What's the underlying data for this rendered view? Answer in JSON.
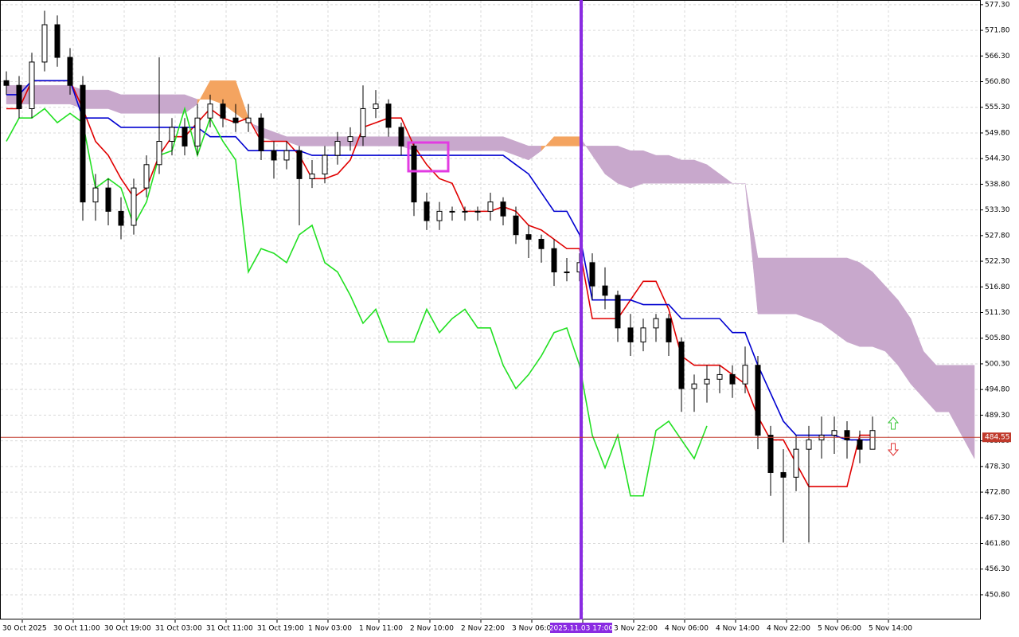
{
  "chart_data": {
    "type": "candlestick",
    "x_labels": [
      "30 Oct 2025",
      "30 Oct 11:00",
      "30 Oct 19:00",
      "31 Oct 03:00",
      "31 Oct 11:00",
      "31 Oct 19:00",
      "1 Nov 03:00",
      "1 Nov 11:00",
      "2 Nov 10:00",
      "2 Nov 22:00",
      "3 Nov 06:00",
      null,
      "3 Nov 22:00",
      "4 Nov 06:00",
      "4 Nov 14:00",
      "4 Nov 22:00",
      "5 Nov 06:00",
      "5 Nov 14:00"
    ],
    "cursor_label": "2025.11.03 17:00",
    "ylim": [
      445.5,
      578.3
    ],
    "yticks": [
      {
        "value": 577.3,
        "label": "577.30"
      },
      {
        "value": 571.8,
        "label": "571.80"
      },
      {
        "value": 566.3,
        "label": "566.30"
      },
      {
        "value": 560.8,
        "label": "560.80"
      },
      {
        "value": 555.3,
        "label": "555.30"
      },
      {
        "value": 549.8,
        "label": "549.80"
      },
      {
        "value": 544.3,
        "label": "544.30"
      },
      {
        "value": 538.8,
        "label": "538.80"
      },
      {
        "value": 533.3,
        "label": "533.30"
      },
      {
        "value": 527.8,
        "label": "527.80"
      },
      {
        "value": 522.3,
        "label": "522.30"
      },
      {
        "value": 516.8,
        "label": "516.80"
      },
      {
        "value": 511.3,
        "label": "511.30"
      },
      {
        "value": 505.8,
        "label": "505.80"
      },
      {
        "value": 500.3,
        "label": "500.30"
      },
      {
        "value": 494.8,
        "label": "494.80"
      },
      {
        "value": 489.3,
        "label": "489.30"
      },
      {
        "value": 483.8,
        "label": "483.80"
      },
      {
        "value": 478.3,
        "label": "478.30"
      },
      {
        "value": 472.8,
        "label": "472.80"
      },
      {
        "value": 467.3,
        "label": "467.30"
      },
      {
        "value": 461.8,
        "label": "461.80"
      },
      {
        "value": 456.3,
        "label": "456.30"
      },
      {
        "value": 450.8,
        "label": "450.80"
      }
    ],
    "grid": true,
    "current_price": 484.55,
    "current_price_color": "#c0392b",
    "candles": {
      "up_color": "#ffffff",
      "down_color": "#000000",
      "open": [
        561,
        560,
        555,
        565,
        573,
        566,
        560,
        535,
        538,
        533,
        530,
        538,
        543,
        548,
        551,
        547,
        553,
        556,
        553,
        552,
        553,
        546,
        544,
        546,
        540,
        541,
        545,
        548,
        549,
        555,
        556,
        551,
        547,
        535,
        531,
        533,
        533,
        533,
        533,
        535,
        532,
        528,
        527,
        525,
        520,
        520,
        522,
        517,
        515,
        508,
        505,
        508,
        510,
        505,
        495,
        496,
        497,
        498,
        496,
        500,
        485,
        477,
        476,
        482,
        484,
        485,
        486,
        484,
        482
      ],
      "high": [
        563,
        562,
        567,
        576,
        575,
        568,
        562,
        541,
        540,
        536,
        540,
        545,
        566,
        553,
        553,
        556,
        558,
        557,
        556,
        556,
        554,
        548,
        548,
        547,
        544,
        547,
        550,
        551,
        560,
        559,
        557,
        552,
        548,
        537,
        535,
        534,
        534,
        534,
        537,
        536,
        534,
        530,
        528,
        527,
        523,
        524,
        524,
        521,
        516,
        511,
        510,
        511,
        511,
        506,
        498,
        500,
        500,
        500,
        504,
        502,
        487,
        482,
        485,
        487,
        489,
        489,
        488,
        486,
        489
      ],
      "low": [
        558,
        553,
        553,
        563,
        564,
        558,
        531,
        531,
        530,
        527,
        528,
        536,
        541,
        545,
        545,
        545,
        551,
        551,
        550,
        550,
        544,
        540,
        542,
        530,
        538,
        539,
        543,
        546,
        547,
        553,
        549,
        545,
        532,
        529,
        529,
        531,
        531,
        531,
        531,
        530,
        526,
        523,
        522,
        517,
        518,
        518,
        514,
        512,
        505,
        502,
        503,
        505,
        502,
        490,
        490,
        492,
        494,
        493,
        494,
        482,
        472,
        462,
        473,
        462,
        480,
        481,
        480,
        479,
        483
      ],
      "close": [
        560,
        555,
        565,
        573,
        566,
        560,
        535,
        538,
        533,
        530,
        538,
        543,
        548,
        551,
        547,
        553,
        556,
        553,
        552,
        553,
        546,
        544,
        546,
        540,
        541,
        545,
        548,
        549,
        555,
        556,
        551,
        547,
        535,
        531,
        533,
        533,
        533,
        533,
        535,
        532,
        528,
        527,
        525,
        520,
        520,
        522,
        517,
        515,
        508,
        505,
        508,
        510,
        505,
        495,
        496,
        497,
        498,
        496,
        500,
        485,
        477,
        476,
        482,
        484,
        485,
        486,
        484,
        482,
        486
      ]
    },
    "cloud": {
      "up_color": "#f4a460",
      "down_color": "#c8a8cc",
      "span_a": [
        556,
        556,
        556,
        556,
        556,
        556,
        555,
        555,
        555,
        554,
        554,
        554,
        554,
        554,
        554,
        556,
        561,
        561,
        561,
        553,
        549,
        548,
        548,
        547,
        547,
        547,
        547,
        547,
        547,
        547,
        547,
        547,
        546,
        546,
        546,
        546,
        546,
        546,
        546,
        546,
        545,
        544,
        546,
        549,
        549,
        549,
        545,
        541,
        539,
        538,
        539,
        539,
        539,
        539,
        539,
        539,
        539,
        539,
        539,
        511,
        511,
        511,
        511,
        510,
        509,
        507,
        505,
        504,
        504,
        503,
        500,
        496,
        493,
        490,
        490,
        485,
        480
      ],
      "span_b": [
        560,
        560,
        560,
        560,
        560,
        560,
        559,
        559,
        559,
        558,
        558,
        558,
        558,
        558,
        558,
        557,
        557,
        556,
        554,
        552,
        551,
        550,
        549,
        549,
        549,
        549,
        549,
        549,
        549,
        549,
        549,
        549,
        549,
        549,
        549,
        549,
        549,
        549,
        549,
        549,
        548,
        547,
        547,
        547,
        547,
        547,
        547,
        547,
        547,
        546,
        546,
        545,
        545,
        544,
        544,
        543,
        541,
        539,
        539,
        523,
        523,
        523,
        523,
        523,
        523,
        523,
        523,
        522,
        520,
        517,
        514,
        510,
        503,
        500,
        500,
        500,
        500
      ]
    },
    "lines": [
      {
        "color": "#e00000",
        "values": [
          555,
          555,
          561,
          561,
          561,
          561,
          555,
          548,
          545,
          540,
          536,
          538,
          545,
          549,
          549,
          552,
          555,
          553,
          552,
          553,
          548,
          548,
          548,
          545,
          540,
          540,
          541,
          544,
          551,
          552,
          553,
          553,
          547,
          543,
          540,
          539,
          533,
          533,
          533,
          534,
          533,
          530,
          529,
          527,
          525,
          525,
          510,
          510,
          510,
          514,
          518,
          518,
          512,
          502,
          500,
          500,
          500,
          498,
          496,
          489,
          484,
          484,
          479,
          474,
          474,
          474,
          474,
          485,
          485,
          null,
          null,
          null,
          null,
          null,
          null,
          null,
          null
        ]
      },
      {
        "color": "#0000d0",
        "values": [
          558,
          558,
          561,
          561,
          561,
          561,
          553,
          553,
          553,
          551,
          551,
          551,
          551,
          551,
          551,
          551,
          549,
          549,
          549,
          546,
          546,
          546,
          546,
          546,
          545,
          545,
          545,
          545,
          545,
          545,
          545,
          545,
          545,
          545,
          545,
          545,
          545,
          545,
          545,
          545,
          543,
          541,
          537,
          533,
          533,
          528,
          514,
          514,
          514,
          514,
          513,
          513,
          513,
          510,
          510,
          510,
          510,
          507,
          507,
          500,
          494,
          488,
          485,
          485,
          485,
          485,
          484,
          484,
          484,
          null,
          null,
          null,
          null,
          null,
          null,
          null,
          null
        ]
      },
      {
        "color": "#22e022",
        "values": [
          548,
          553,
          553,
          555,
          552,
          554,
          552,
          538,
          540,
          538,
          530,
          535,
          545,
          546,
          555,
          545,
          553,
          548,
          544,
          520,
          525,
          524,
          522,
          528,
          530,
          522,
          520,
          515,
          509,
          512,
          505,
          505,
          505,
          512,
          507,
          510,
          512,
          508,
          508,
          500,
          495,
          498,
          502,
          507,
          508,
          500,
          485,
          478,
          485,
          472,
          472,
          486,
          488,
          484,
          480,
          487,
          null,
          null,
          null,
          null,
          null,
          null,
          null,
          null,
          null,
          null,
          null,
          null,
          null,
          null,
          null,
          null,
          null
        ]
      }
    ]
  }
}
